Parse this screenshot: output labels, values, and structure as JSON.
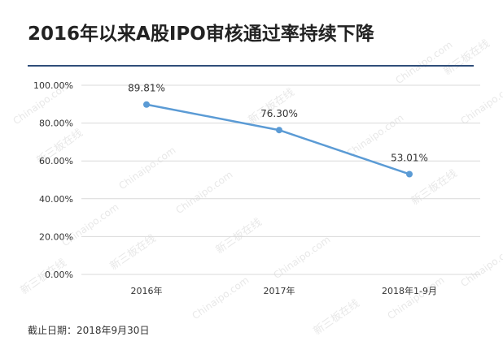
{
  "title": "2016年以来A股IPO审核通过率持续下降",
  "footnote": "截止日期：2018年9月30日",
  "watermark": {
    "cn": "新三板在线",
    "en": "Chinaipo.com"
  },
  "colors": {
    "line": "#5b9bd5",
    "rule": "#2f4e7a",
    "grid": "#d9d9d9"
  },
  "chart_data": {
    "type": "line",
    "categories": [
      "2016年",
      "2017年",
      "2018年1-9月"
    ],
    "values": [
      89.81,
      76.3,
      53.01
    ],
    "data_labels": [
      "89.81%",
      "76.30%",
      "53.01%"
    ],
    "y_ticks": [
      "0.00%",
      "20.00%",
      "40.00%",
      "60.00%",
      "80.00%",
      "100.00%"
    ],
    "ylim": [
      0,
      100
    ],
    "grid": true,
    "legend": "none"
  }
}
